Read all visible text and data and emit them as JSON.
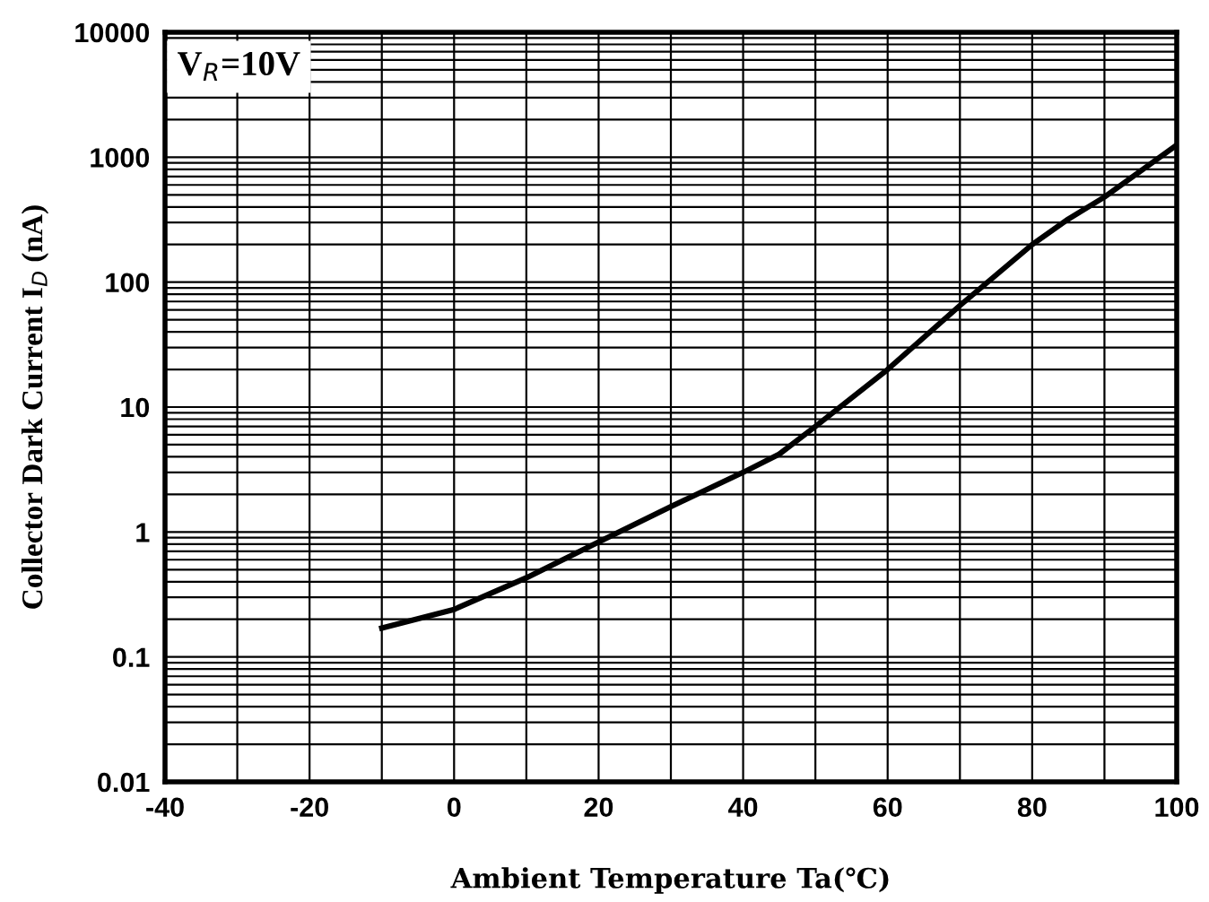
{
  "chart_data": {
    "type": "line",
    "xlabel": "Ambient Temperature Ta(℃)",
    "ylabel": "Collector Dark Current I$_{D}$ (nA)",
    "annotations": [
      "V$_{R}$=10V"
    ],
    "x": [
      -10,
      0,
      10,
      20,
      30,
      40,
      45,
      50,
      60,
      70,
      80,
      85,
      90,
      100
    ],
    "series": [
      {
        "color": "#000000",
        "values": [
          0.17,
          0.24,
          0.43,
          0.83,
          1.6,
          3.0,
          4.2,
          7.0,
          20,
          65,
          200,
          320,
          480,
          1250
        ]
      }
    ],
    "log": "y",
    "xlim": [
      -40,
      100
    ],
    "xticks": [
      -40,
      {
        "value": -30,
        "label": null
      },
      -20,
      {
        "value": -10,
        "label": null
      },
      0,
      {
        "value": 10,
        "label": null
      },
      20,
      {
        "value": 30,
        "label": null
      },
      40,
      {
        "value": 50,
        "label": null
      },
      60,
      {
        "value": 70,
        "label": null
      },
      80,
      {
        "value": 90,
        "label": null
      },
      100
    ],
    "ylim": [
      0.01,
      10000
    ],
    "yticks": [
      0.01,
      0.1,
      1,
      10,
      100,
      1000,
      10000
    ],
    "grid": true,
    "marker": "none",
    "line_style": "solid"
  }
}
